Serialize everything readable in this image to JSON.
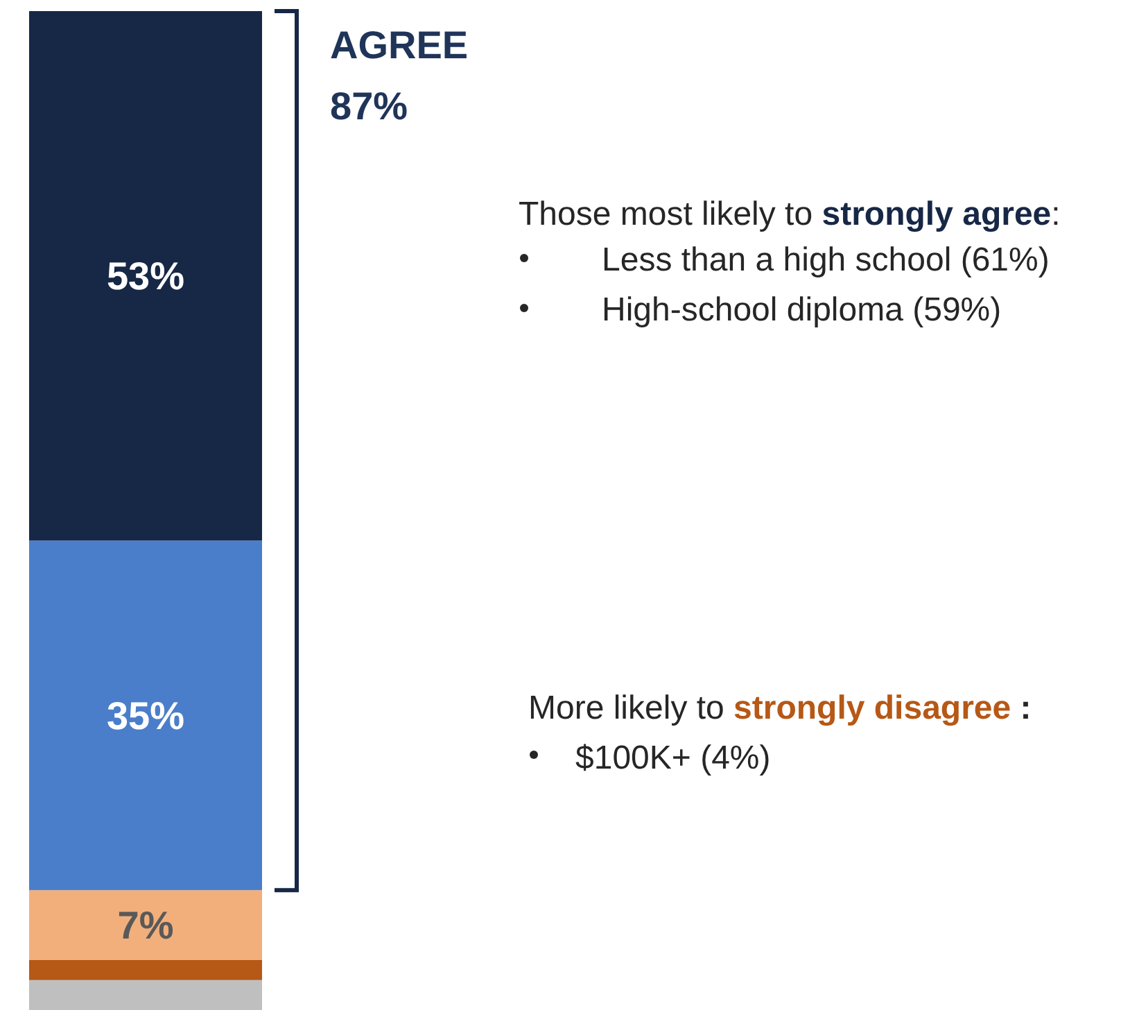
{
  "chart_data": {
    "type": "bar",
    "stacked": true,
    "categories": [
      null
    ],
    "series": [
      {
        "color": "#bfbfbf",
        "values": [
          3
        ],
        "value_labels": [
          null
        ]
      },
      {
        "color": "#b65816",
        "values": [
          2
        ],
        "value_labels": [
          null
        ]
      },
      {
        "color": "#f2af7c",
        "values": [
          7
        ],
        "value_labels": [
          "7%"
        ]
      },
      {
        "color": "#4a7eca",
        "values": [
          35
        ],
        "value_labels": [
          "35%"
        ]
      },
      {
        "color": "#172746",
        "values": [
          53
        ],
        "value_labels": [
          "53%"
        ]
      }
    ],
    "annotations": [
      "AGREE",
      "87%",
      "Those most likely to ",
      "strongly agree",
      ":",
      "Less than a high school (61%)",
      "High-school diploma (59%)",
      "More likely to ",
      "strongly disagree",
      " :",
      "$100K+ (4%)"
    ]
  }
}
